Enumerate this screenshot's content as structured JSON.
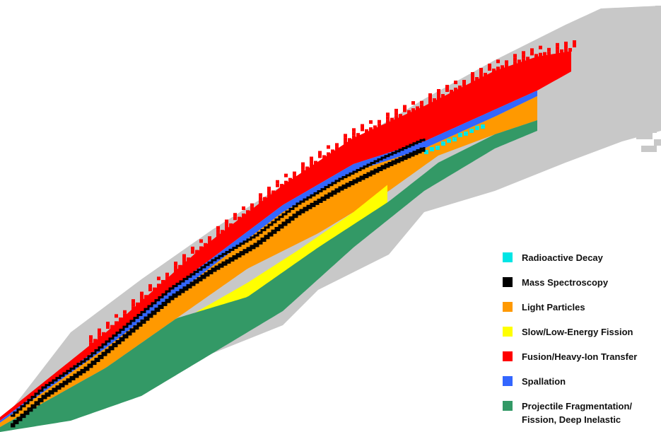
{
  "chart_data": {
    "type": "heatmap",
    "title": "",
    "xlabel": "",
    "ylabel": "",
    "grid": false,
    "legend_placement": "bottom-right",
    "background_color": "#c8c8c8",
    "categories": [
      {
        "key": "radioactive_decay",
        "label": "Radioactive Decay",
        "color": "#00e5e5"
      },
      {
        "key": "mass_spectroscopy",
        "label": "Mass Spectroscopy",
        "color": "#000000"
      },
      {
        "key": "light_particles",
        "label": "Light Particles",
        "color": "#ff9900"
      },
      {
        "key": "slow_fission",
        "label": "Slow/Low-Energy Fission",
        "color": "#ffff00"
      },
      {
        "key": "fusion_transfer",
        "label": "Fusion/Heavy-Ion Transfer",
        "color": "#ff0000"
      },
      {
        "key": "spallation",
        "label": "Spallation",
        "color": "#3366ff"
      },
      {
        "key": "fragmentation",
        "label": "Projectile Fragmentation/\nFission, Deep Inelastic",
        "color": "#339966"
      }
    ]
  }
}
